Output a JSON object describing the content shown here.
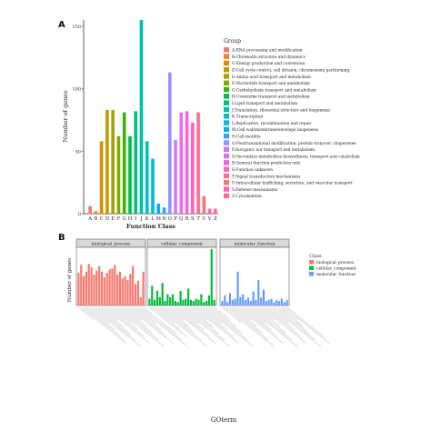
{
  "chart_data": [
    {
      "type": "bar",
      "panel_label": "A",
      "xlabel": "Function Class",
      "ylabel": "Number of genes",
      "ylim": [
        0,
        155
      ],
      "yticks": [
        0,
        50,
        100,
        150
      ],
      "legend": {
        "title": "Group",
        "placement": "right"
      },
      "categories": [
        "A",
        "B",
        "C",
        "D",
        "E",
        "F",
        "G",
        "H",
        "I",
        "J",
        "K",
        "L",
        "M",
        "N",
        "O",
        "P",
        "Q",
        "R",
        "S",
        "T",
        "U",
        "V",
        "Z"
      ],
      "values": [
        6,
        2,
        58,
        83,
        83,
        62,
        81,
        62,
        82,
        155,
        58,
        44,
        8,
        5,
        113,
        59,
        81,
        82,
        73,
        81,
        14,
        4,
        4
      ],
      "colors": [
        "#F8766D",
        "#EA8331",
        "#D89000",
        "#C09B00",
        "#A3A500",
        "#7CAE00",
        "#39B600",
        "#00BB4E",
        "#00BF7D",
        "#00C1A3",
        "#00BFC4",
        "#00BAE0",
        "#00B0F6",
        "#35A2FF",
        "#9590FF",
        "#C77CFF",
        "#E76BF3",
        "#FA62DB",
        "#FF62BC",
        "#FF6C91",
        "#F8766D",
        "#FF62BC",
        "#FF6C91"
      ],
      "legend_items": [
        "A:RNA processing and modification",
        "B:Chromatin structure and dynamics",
        "C:Energy production and conversion",
        "D:Cell cycle control, cell division, chromosome partitioning",
        "E:Amino acid transport and metabolism",
        "F:Nucleotide transport and metabolism",
        "G:Carbohydrate transport and metabolism",
        "H:Coenzyme transport and metabolism",
        "I:Lipid transport and metabolism",
        "J:Translation, ribosomal structure and biogenesis",
        "K:Transcription",
        "L:Replication, recombination and repair",
        "M:Cell wall/membrane/envelope biogenesis",
        "N:Cell motility",
        "O:Posttranslational modification, protein turnover, chaperones",
        "P:Inorganic ion transport and metabolism",
        "Q:Secondary metabolites biosynthesis, transport and catabolism",
        "R:General function prediction only",
        "S:Function unknown",
        "T:Signal transduction mechanisms",
        "U:Intracellular trafficking, secretion, and vesicular transport",
        "V:Defense mechanisms",
        "Z:Cytoskeleton"
      ]
    },
    {
      "type": "bar",
      "panel_label": "B",
      "xlabel": "GOterm",
      "ylabel": "Number of genes",
      "legend": {
        "title": "Class",
        "placement": "right"
      },
      "facets": [
        {
          "name": "biological_process",
          "color": "#F8766D",
          "values": [
            58,
            72,
            52,
            60,
            74,
            68,
            55,
            62,
            70,
            60,
            50,
            58,
            64,
            66,
            72,
            55,
            60,
            48,
            52,
            45,
            56,
            70,
            38,
            44,
            15,
            60
          ]
        },
        {
          "name": "cellular_component",
          "color": "#00BA38",
          "values": [
            12,
            35,
            10,
            26,
            15,
            40,
            8,
            20,
            15,
            20,
            8,
            6,
            26,
            10,
            12,
            30,
            10,
            8,
            12,
            10,
            20,
            6,
            8,
            18,
            100,
            10
          ]
        },
        {
          "name": "molecular_function",
          "color": "#619CFF",
          "values": [
            8,
            18,
            6,
            22,
            10,
            12,
            60,
            15,
            20,
            10,
            14,
            8,
            25,
            10,
            45,
            14,
            28,
            8,
            10,
            12,
            6,
            10,
            8,
            12,
            6,
            10
          ]
        }
      ],
      "legend_items": [
        "biological_process",
        "cellular_component",
        "molecular_function"
      ]
    }
  ]
}
